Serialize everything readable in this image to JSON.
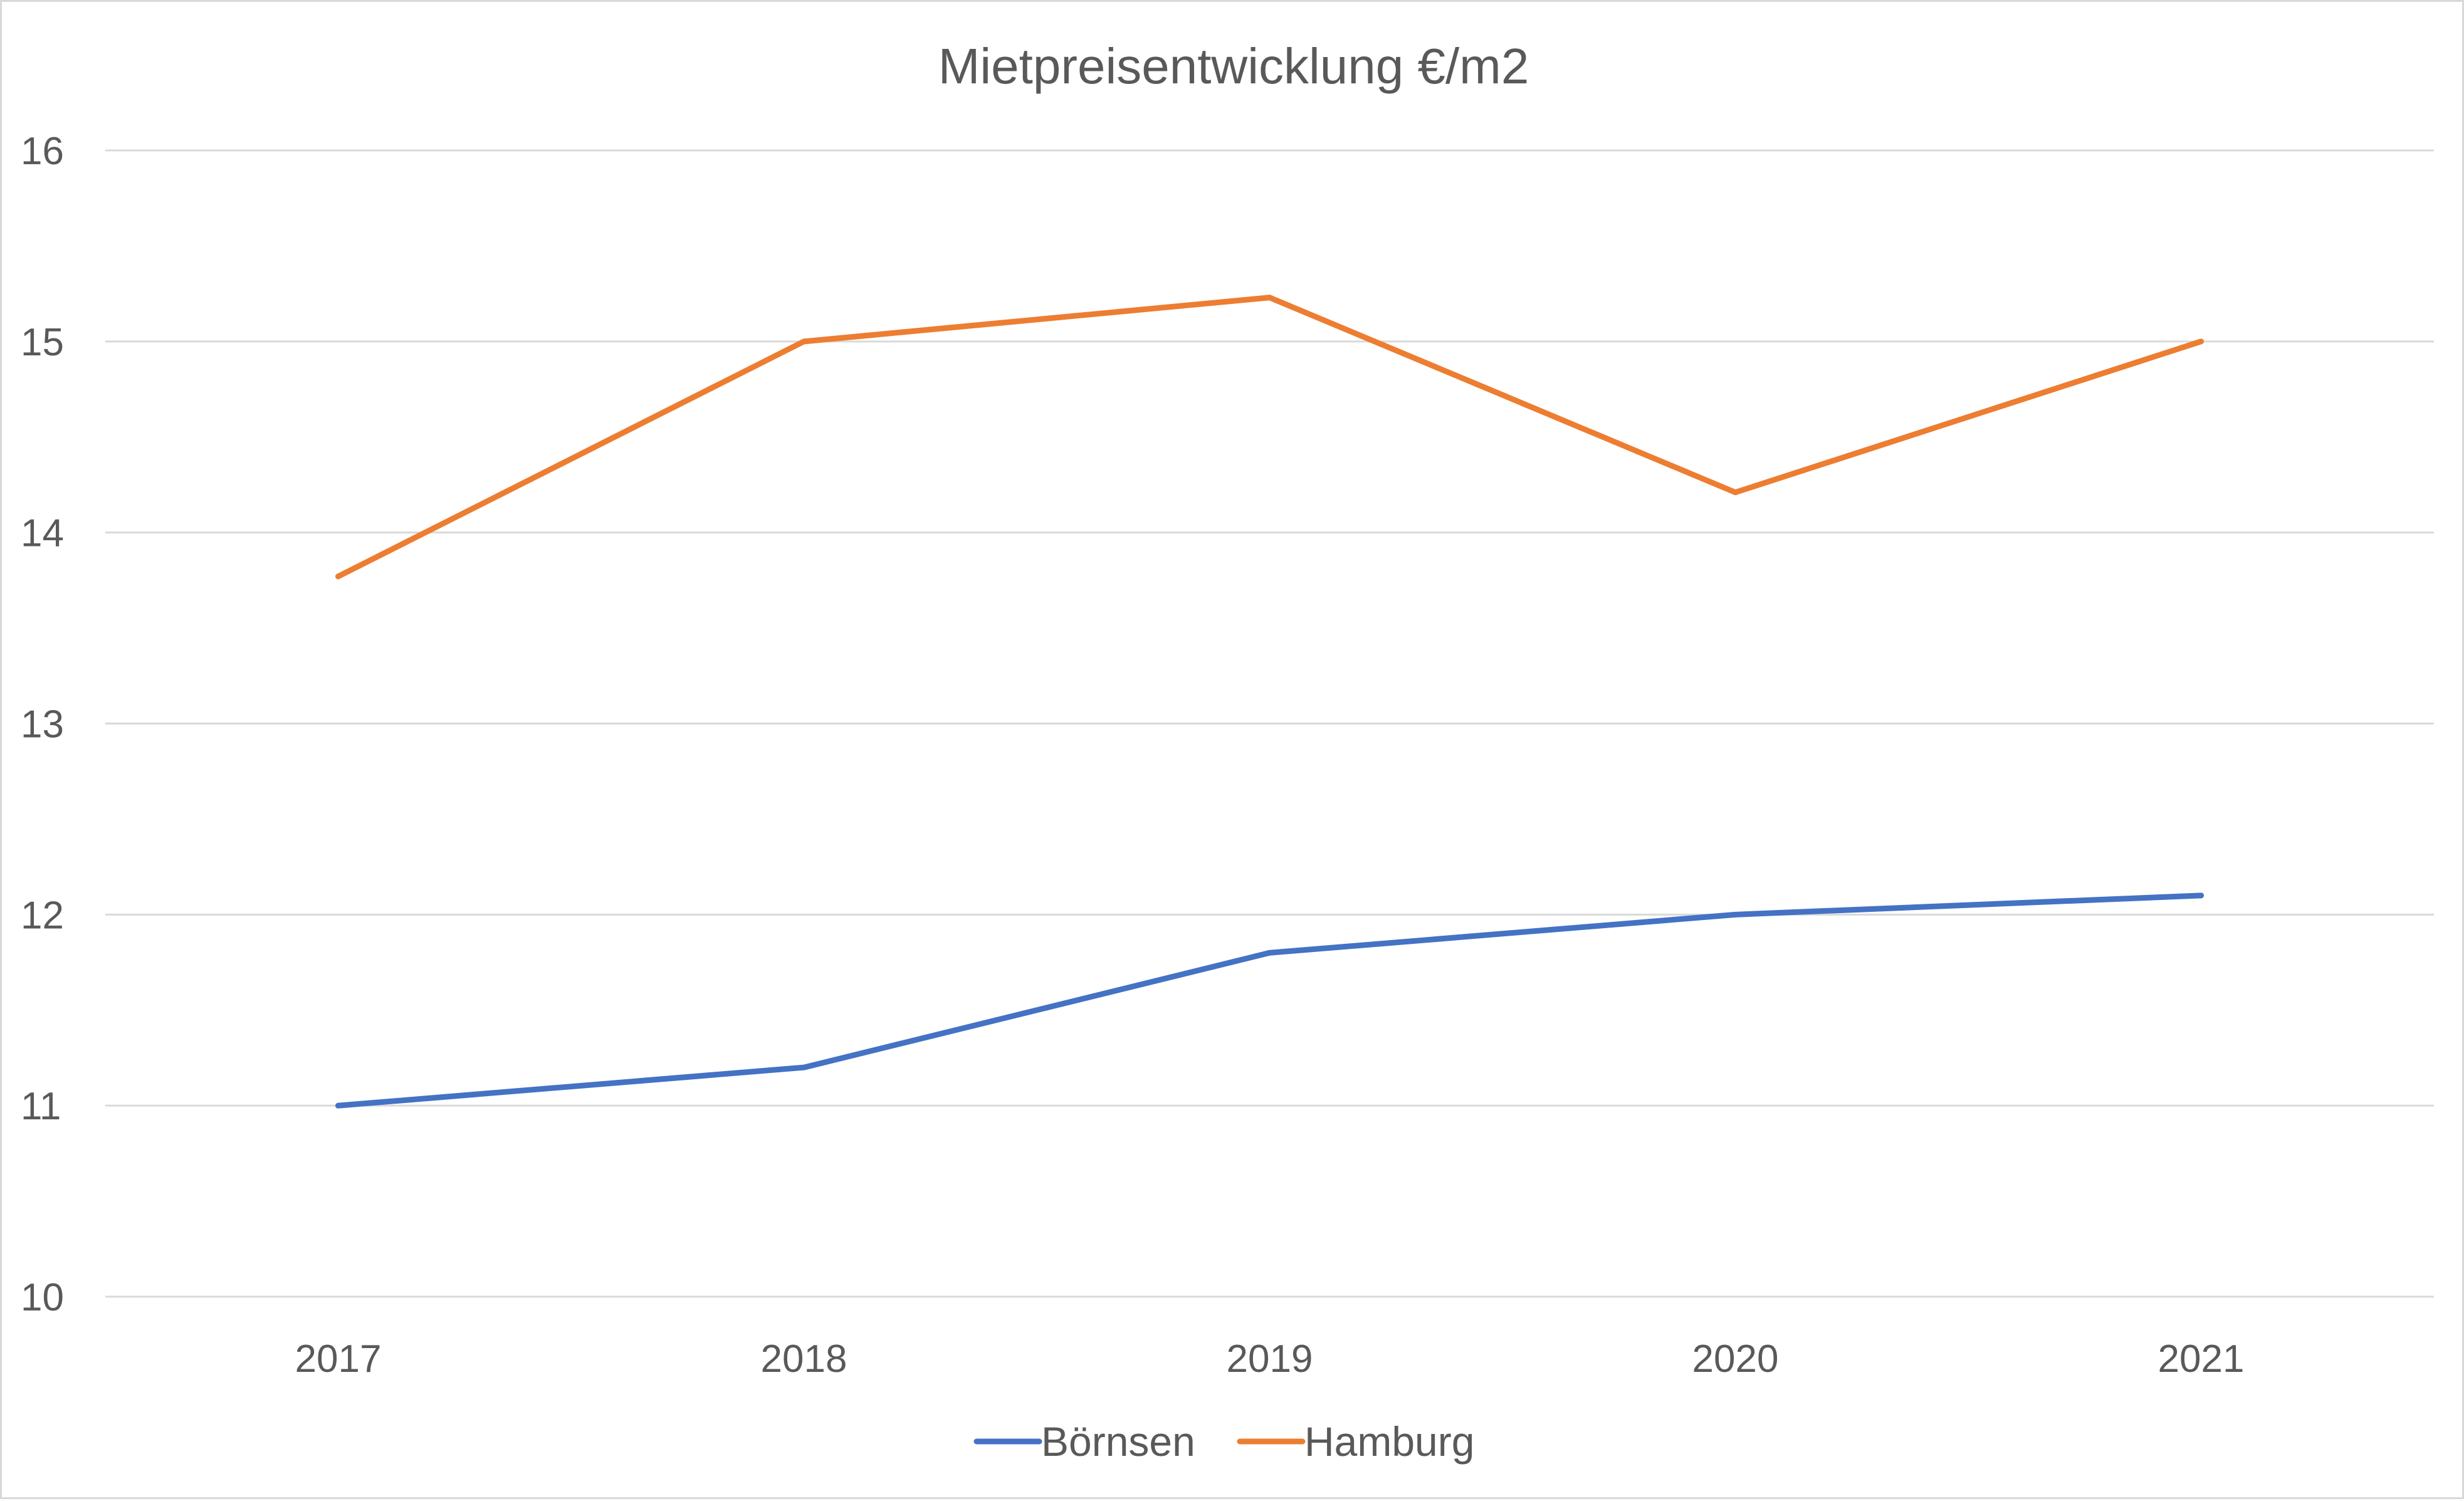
{
  "chart_data": {
    "type": "line",
    "title": "Mietpreisentwicklung  €/m2",
    "xlabel": "",
    "ylabel": "",
    "categories": [
      "2017",
      "2018",
      "2019",
      "2020",
      "2021"
    ],
    "ylim": [
      10,
      16
    ],
    "yticks": [
      "10",
      "11",
      "12",
      "13",
      "14",
      "15",
      "16"
    ],
    "grid": true,
    "legend_position": "bottom",
    "series": [
      {
        "name": "Börnsen",
        "color": "#4472c4",
        "values": [
          11.0,
          11.2,
          11.8,
          12.0,
          12.1
        ]
      },
      {
        "name": "Hamburg",
        "color": "#ed7d31",
        "values": [
          13.77,
          15.0,
          15.23,
          14.21,
          15.0
        ]
      }
    ]
  }
}
